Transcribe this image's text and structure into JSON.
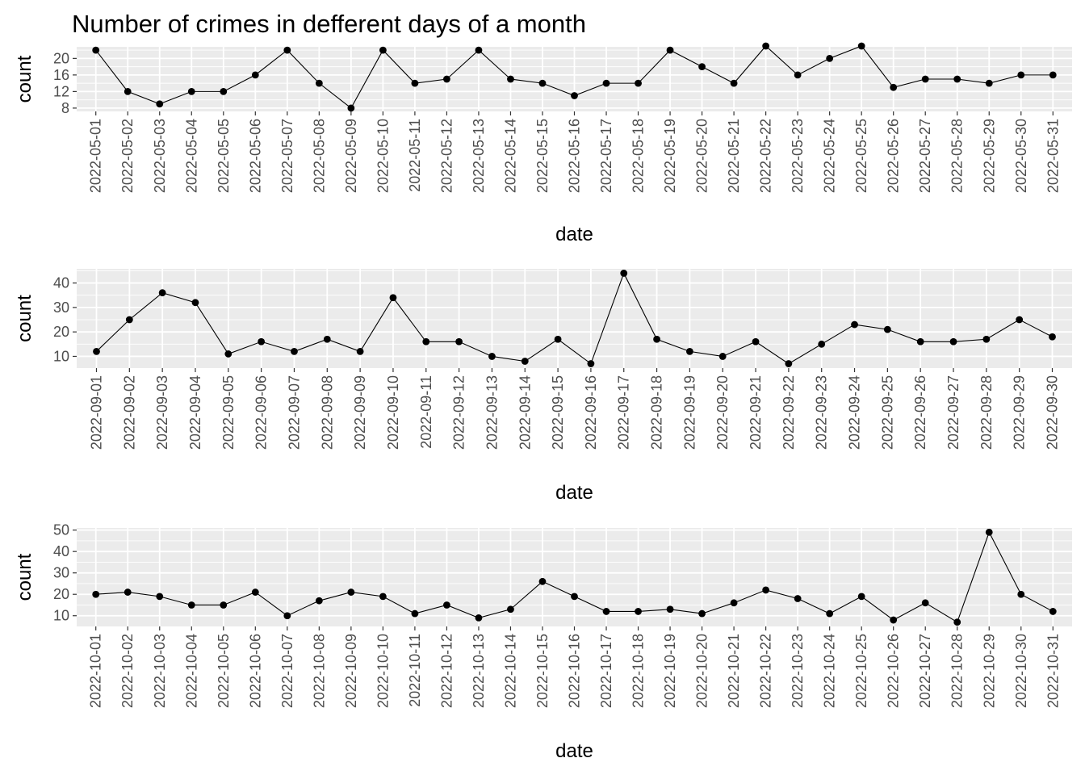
{
  "title": "Number of crimes in defferent days of a month",
  "chart_data": [
    {
      "type": "line",
      "xlabel": "date",
      "ylabel": "count",
      "y_ticks": [
        8,
        12,
        16,
        20
      ],
      "ylim": [
        7.2,
        22.8
      ],
      "x": [
        "2022-05-01",
        "2022-05-02",
        "2022-05-03",
        "2022-05-04",
        "2022-05-05",
        "2022-05-06",
        "2022-05-07",
        "2022-05-08",
        "2022-05-09",
        "2022-05-10",
        "2022-05-11",
        "2022-05-12",
        "2022-05-13",
        "2022-05-14",
        "2022-05-15",
        "2022-05-16",
        "2022-05-17",
        "2022-05-18",
        "2022-05-19",
        "2022-05-20",
        "2022-05-21",
        "2022-05-22",
        "2022-05-23",
        "2022-05-24",
        "2022-05-25",
        "2022-05-26",
        "2022-05-27",
        "2022-05-28",
        "2022-05-29",
        "2022-05-30",
        "2022-05-31"
      ],
      "values": [
        22,
        12,
        9,
        12,
        12,
        16,
        22,
        14,
        8,
        22,
        14,
        15,
        22,
        15,
        14,
        11,
        14,
        14,
        22,
        18,
        14,
        23,
        16,
        20,
        23,
        13,
        15,
        15,
        14,
        16,
        16
      ],
      "grid": true,
      "markers": "points"
    },
    {
      "type": "line",
      "xlabel": "date",
      "ylabel": "count",
      "y_ticks": [
        10,
        20,
        30,
        40
      ],
      "ylim": [
        5.2,
        45.8
      ],
      "x": [
        "2022-09-01",
        "2022-09-02",
        "2022-09-03",
        "2022-09-04",
        "2022-09-05",
        "2022-09-06",
        "2022-09-07",
        "2022-09-08",
        "2022-09-09",
        "2022-09-10",
        "2022-09-11",
        "2022-09-12",
        "2022-09-13",
        "2022-09-14",
        "2022-09-15",
        "2022-09-16",
        "2022-09-17",
        "2022-09-18",
        "2022-09-19",
        "2022-09-20",
        "2022-09-21",
        "2022-09-22",
        "2022-09-23",
        "2022-09-24",
        "2022-09-25",
        "2022-09-26",
        "2022-09-27",
        "2022-09-28",
        "2022-09-29",
        "2022-09-30"
      ],
      "values": [
        12,
        25,
        36,
        32,
        11,
        16,
        12,
        17,
        12,
        34,
        16,
        16,
        10,
        8,
        17,
        7,
        44,
        17,
        12,
        10,
        16,
        7,
        15,
        23,
        21,
        16,
        16,
        17,
        25,
        18
      ],
      "grid": true,
      "markers": "points"
    },
    {
      "type": "line",
      "xlabel": "date",
      "ylabel": "count",
      "y_ticks": [
        10,
        20,
        30,
        40,
        50
      ],
      "ylim": [
        5.0,
        51.0
      ],
      "x": [
        "2022-10-01",
        "2022-10-02",
        "2022-10-03",
        "2022-10-04",
        "2022-10-05",
        "2022-10-06",
        "2022-10-07",
        "2022-10-08",
        "2022-10-09",
        "2022-10-10",
        "2022-10-11",
        "2022-10-12",
        "2022-10-13",
        "2022-10-14",
        "2022-10-15",
        "2022-10-16",
        "2022-10-17",
        "2022-10-18",
        "2022-10-19",
        "2022-10-20",
        "2022-10-21",
        "2022-10-22",
        "2022-10-23",
        "2022-10-24",
        "2022-10-25",
        "2022-10-26",
        "2022-10-27",
        "2022-10-28",
        "2022-10-29",
        "2022-10-30",
        "2022-10-31"
      ],
      "values": [
        20,
        21,
        19,
        15,
        15,
        21,
        10,
        17,
        21,
        19,
        11,
        15,
        9,
        13,
        26,
        19,
        12,
        12,
        13,
        11,
        16,
        22,
        18,
        11,
        19,
        8,
        16,
        7,
        49,
        20,
        12
      ],
      "grid": true,
      "markers": "points"
    }
  ],
  "colors": {
    "panel_background": "#ebebeb",
    "grid": "#ffffff",
    "line": "#000000",
    "point": "#000000",
    "tick_text": "#4d4d4d",
    "tick_mark": "#333333"
  }
}
